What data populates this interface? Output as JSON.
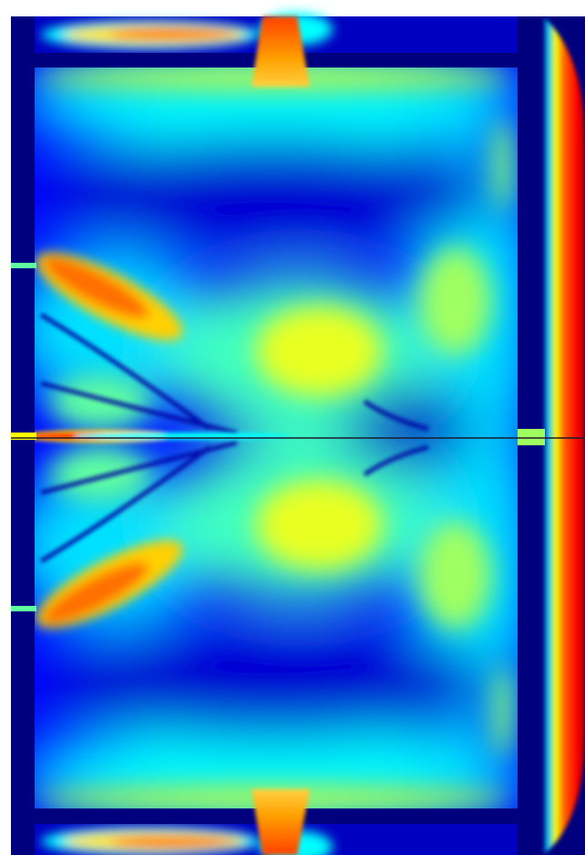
{
  "figure": {
    "kind": "false-color field intensity map",
    "colormap": "jet",
    "palette": {
      "background": "#ffffff",
      "wall": "#00007f",
      "deep_blue": "#0000ff",
      "cyan": "#00ffff",
      "green": "#7fff7f",
      "yellow": "#ffff00",
      "orange": "#ff7f00",
      "red": "#ff0000",
      "dark_red": "#7f0000",
      "center_line": "#1a1a2e"
    }
  }
}
